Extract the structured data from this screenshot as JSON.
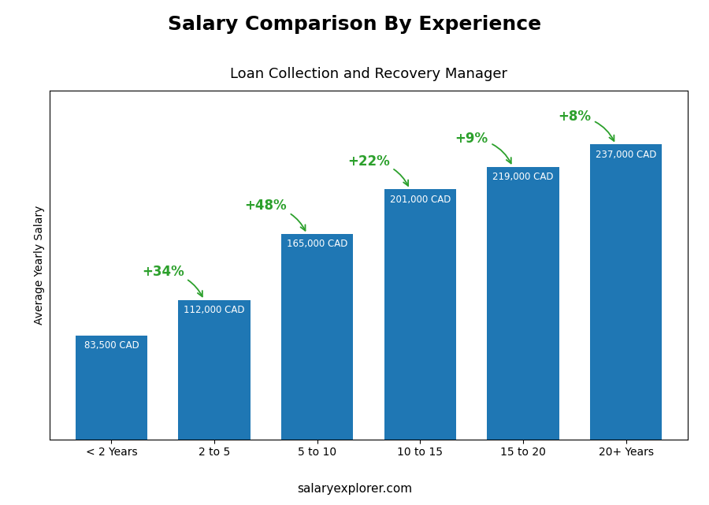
{
  "chart_data": {
    "type": "bar",
    "title": "Salary Comparison By Experience",
    "subtitle": "Loan Collection and Recovery Manager",
    "categories": [
      "< 2 Years",
      "2 to 5",
      "5 to 10",
      "10 to 15",
      "15 to 20",
      "20+ Years"
    ],
    "values": [
      83500,
      112000,
      165000,
      201000,
      219000,
      237000
    ],
    "value_labels": [
      "83,500 CAD",
      "112,000 CAD",
      "165,000 CAD",
      "201,000 CAD",
      "219,000 CAD",
      "237,000 CAD"
    ],
    "data_labels": true,
    "annotations": [
      "+34%",
      "+48%",
      "+22%",
      "+9%",
      "+8%"
    ],
    "ylabel": "Average Yearly Salary",
    "footer": "salaryexplorer.com",
    "ylim": [
      0,
      280000
    ],
    "tick_labels": "x",
    "grid": false
  }
}
